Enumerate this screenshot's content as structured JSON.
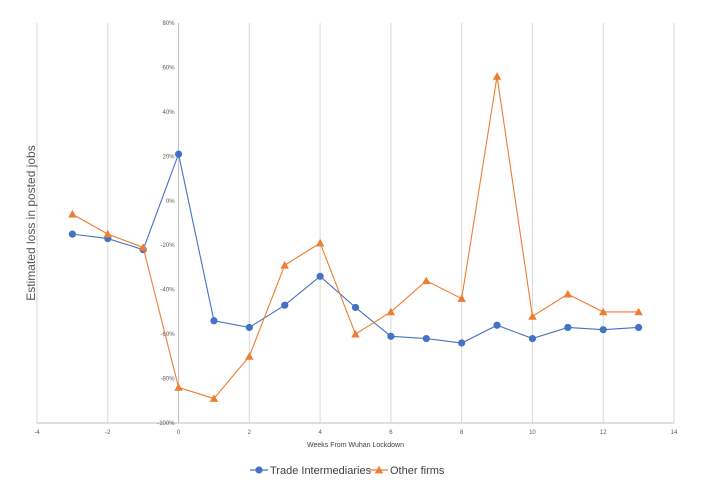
{
  "chart_data": {
    "type": "line",
    "title": "",
    "xlabel": "Weeks From Wuhan Lockdown",
    "ylabel": "Estimated loss in posted jobs",
    "xlim": [
      -4,
      14
    ],
    "ylim": [
      -100,
      80
    ],
    "x_ticks": [
      -4,
      -2,
      0,
      2,
      4,
      6,
      8,
      10,
      12,
      14
    ],
    "y_ticks": [
      -100,
      -80,
      -60,
      -40,
      -20,
      0,
      20,
      40,
      60,
      80
    ],
    "y_tick_labels": [
      "-100%",
      "-80%",
      "-60%",
      "-40%",
      "-20%",
      "0%",
      "20%",
      "40%",
      "60%",
      "80%"
    ],
    "grid": "vertical",
    "legend_position": "bottom",
    "series": [
      {
        "name": "Trade Intermediaries",
        "color": "#4472C4",
        "marker": "circle",
        "x": [
          -3,
          -2,
          -1,
          0,
          1,
          2,
          3,
          4,
          5,
          6,
          7,
          8,
          9,
          10,
          11,
          12,
          13
        ],
        "values": [
          -15,
          -17,
          -22,
          21,
          -54,
          -57,
          -47,
          -34,
          -48,
          -61,
          -62,
          -64,
          -56,
          -62,
          -57,
          -58,
          -57
        ]
      },
      {
        "name": "Other firms",
        "color": "#ED7D31",
        "marker": "triangle",
        "x": [
          -3,
          -2,
          -1,
          0,
          1,
          2,
          3,
          4,
          5,
          6,
          7,
          8,
          9,
          10,
          11,
          12,
          13
        ],
        "values": [
          -6,
          -15,
          -21,
          -84,
          -89,
          -70,
          -29,
          -19,
          -60,
          -50,
          -36,
          -44,
          56,
          -52,
          -42,
          -50,
          -50
        ]
      }
    ]
  }
}
